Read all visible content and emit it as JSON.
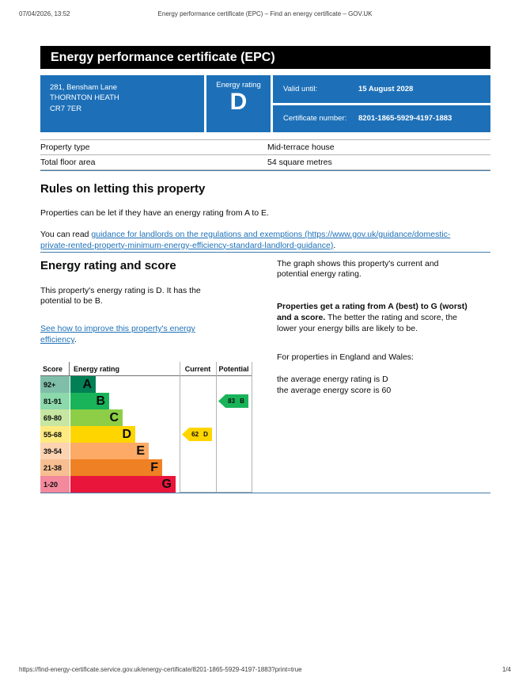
{
  "print_header": {
    "datetime": "07/04/2026, 13:52",
    "title": "Energy performance certificate (EPC) – Find an energy certificate – GOV.UK"
  },
  "print_footer": {
    "url": "https://find-energy-certificate.service.gov.uk/energy-certificate/8201-1865-5929-4197-1883?print=true",
    "page": "1/4"
  },
  "banner": {
    "title": "Energy performance certificate (EPC)"
  },
  "summary": {
    "address_line1": "281, Bensham Lane",
    "address_line2": "THORNTON HEATH",
    "address_line3": "CR7 7ER",
    "energy_rating_label": "Energy rating",
    "energy_rating": "D",
    "valid_until_label": "Valid until:",
    "valid_until": "15 August 2028",
    "certificate_number_label": "Certificate number:",
    "certificate_number": "8201-1865-5929-4197-1883"
  },
  "property_table": {
    "rows": [
      {
        "label": "Property type",
        "value": "Mid-terrace house"
      },
      {
        "label": "Total floor area",
        "value": "54 square metres"
      }
    ]
  },
  "rules_section": {
    "heading": "Rules on letting this property",
    "paragraph1": "Properties can be let if they have an energy rating from A to E.",
    "paragraph2_prefix": "You can read ",
    "link_line1": "guidance for landlords on the regulations and exemptions (https://www.gov.uk/guidance/domestic-",
    "link_line2": "private-rented-property-minimum-energy-efficiency-standard-landlord-guidance)",
    "paragraph2_suffix": "."
  },
  "rating_section": {
    "heading": "Energy rating and score",
    "p1_line1": "This property's energy rating is D. It has the",
    "p1_line2": "potential to be B.",
    "link_line1": "See how to improve this property's energy",
    "link_line2": "efficiency",
    "link_suffix": ".",
    "right": {
      "p1_line1": "The graph shows this property's current and",
      "p1_line2": "potential energy rating.",
      "p2_line1_bold": "Properties get a rating from A (best) to G (worst)",
      "p2_line2_bold": "and a score.",
      "p2_line2_rest": " The better the rating and score, the",
      "p2_line3": "lower your energy bills are likely to be.",
      "p3": "For properties in England and Wales:",
      "p4_line1": "the average energy rating is D",
      "p4_line2": "the average energy score is 60"
    }
  },
  "chart_data": {
    "type": "bar",
    "title": "EPC energy rating graph",
    "headers": [
      "Score",
      "Energy rating",
      "Current",
      "Potential"
    ],
    "bands": [
      {
        "score": "92+",
        "letter": "A",
        "color": "#008054",
        "score_bg": "#7fbfa9"
      },
      {
        "score": "81-91",
        "letter": "B",
        "color": "#19b459",
        "score_bg": "#8cd9ac"
      },
      {
        "score": "69-80",
        "letter": "C",
        "color": "#8dce46",
        "score_bg": "#c6e6a2"
      },
      {
        "score": "55-68",
        "letter": "D",
        "color": "#ffd500",
        "score_bg": "#ffea7f"
      },
      {
        "score": "39-54",
        "letter": "E",
        "color": "#fcaa65",
        "score_bg": "#fdd4b2"
      },
      {
        "score": "21-38",
        "letter": "F",
        "color": "#ef8023",
        "score_bg": "#f7bf91"
      },
      {
        "score": "1-20",
        "letter": "G",
        "color": "#e9153b",
        "score_bg": "#f4899d"
      }
    ],
    "current": {
      "score": 62,
      "letter": "D",
      "band_index": 3,
      "color": "#ffd500"
    },
    "potential": {
      "score": 83,
      "letter": "B",
      "band_index": 1,
      "color": "#19b459"
    }
  },
  "colors": {
    "govuk_blue": "#1d70b8",
    "banner_black": "#000000",
    "grey_rule": "#b1b4b6",
    "section_rule_blue": "#447ca8"
  }
}
